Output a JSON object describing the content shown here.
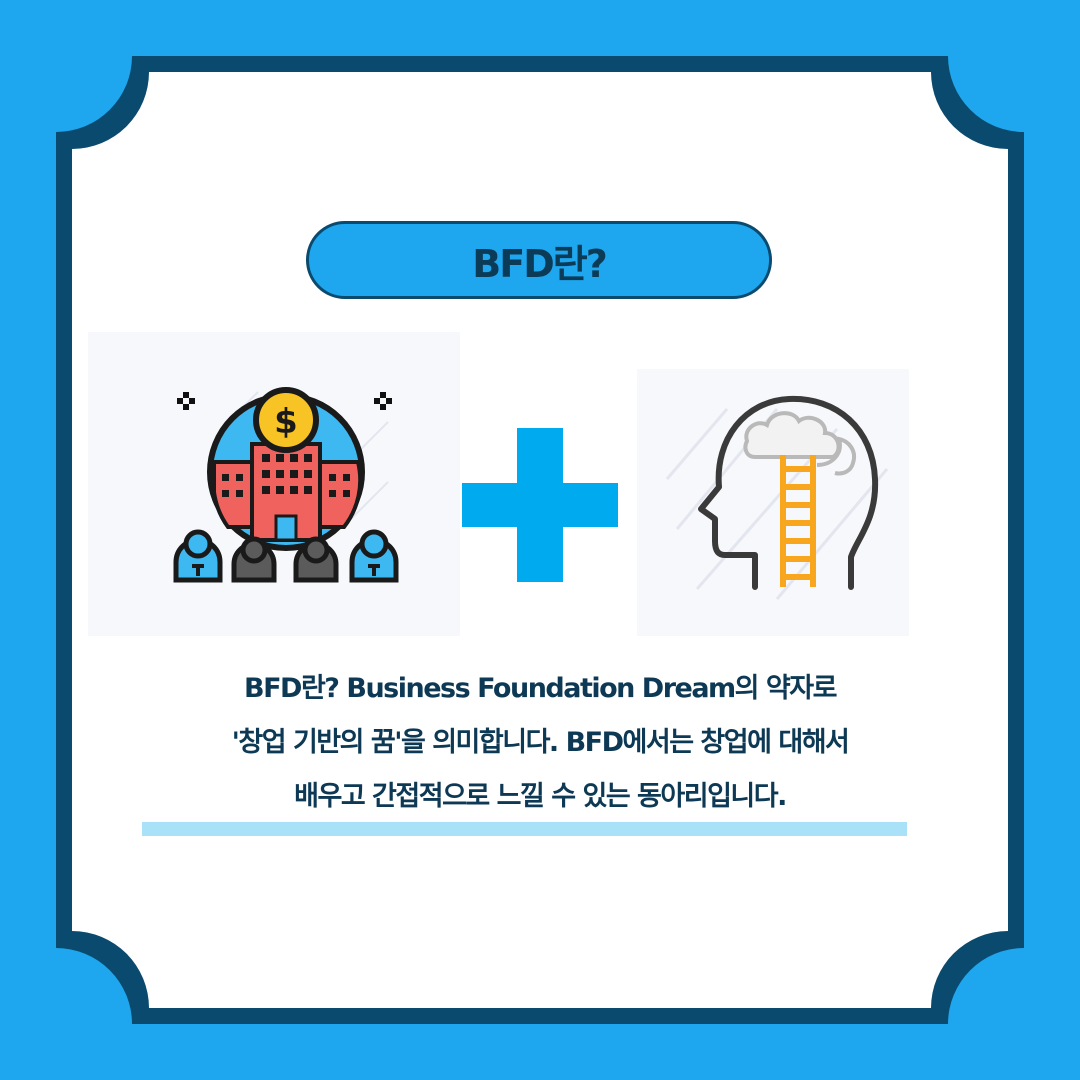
{
  "title": "BFD란?",
  "description": {
    "line1": "BFD란? Business Foundation Dream의 약자로",
    "line2": "'창업 기반의 꿈'을 의미합니다. BFD에서는 창업에 대해서",
    "line3": "배우고 간접적으로 느낄 수 있는 동아리입니다."
  },
  "icons": {
    "left": "business-building-people-icon",
    "plus": "plus-icon",
    "right": "head-ladder-icon"
  },
  "colors": {
    "background": "#1ea7ee",
    "frame": "#0a4a6e",
    "card": "#ffffff",
    "text": "#0d3955",
    "plus": "#00aaee",
    "ladder": "#f8a61d",
    "highlight": "#a9e1f8"
  }
}
